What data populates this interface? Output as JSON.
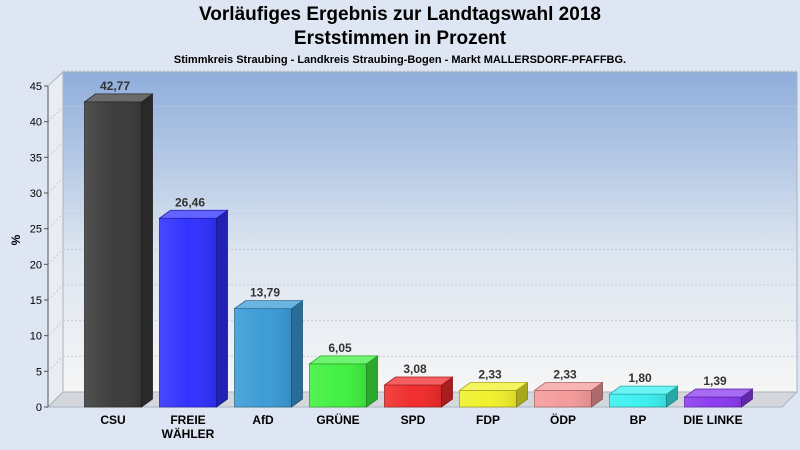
{
  "chart_data": {
    "type": "bar",
    "title": "Vorläufiges Ergebnis zur Landtagswahl 2018",
    "subtitle": "Erststimmen in Prozent",
    "subsubtitle": "Stimmkreis Straubing - Landkreis Straubing-Bogen - Markt MALLERSDORF-PFAFFBG.",
    "ylabel": "%",
    "ylim": [
      0,
      45
    ],
    "yticks": [
      0,
      5,
      10,
      15,
      20,
      25,
      30,
      35,
      40,
      45
    ],
    "grid": true,
    "categories": [
      [
        "CSU"
      ],
      [
        "FREIE",
        "WÄHLER"
      ],
      [
        "AfD"
      ],
      [
        "GRÜNE"
      ],
      [
        "SPD"
      ],
      [
        "FDP"
      ],
      [
        "ÖDP"
      ],
      [
        "BP"
      ],
      [
        "DIE LINKE"
      ]
    ],
    "values": [
      42.77,
      26.46,
      13.79,
      6.05,
      3.08,
      2.33,
      2.33,
      1.8,
      1.39
    ],
    "value_labels": [
      "42,77",
      "26,46",
      "13,79",
      "6,05",
      "3,08",
      "2,33",
      "2,33",
      "1,80",
      "1,39"
    ],
    "colors": [
      "#3a3a3a",
      "#2f2fff",
      "#3a9ad6",
      "#3ff03f",
      "#f02a2a",
      "#f0f02a",
      "#f59a9a",
      "#3af0f0",
      "#8a3af0"
    ]
  }
}
